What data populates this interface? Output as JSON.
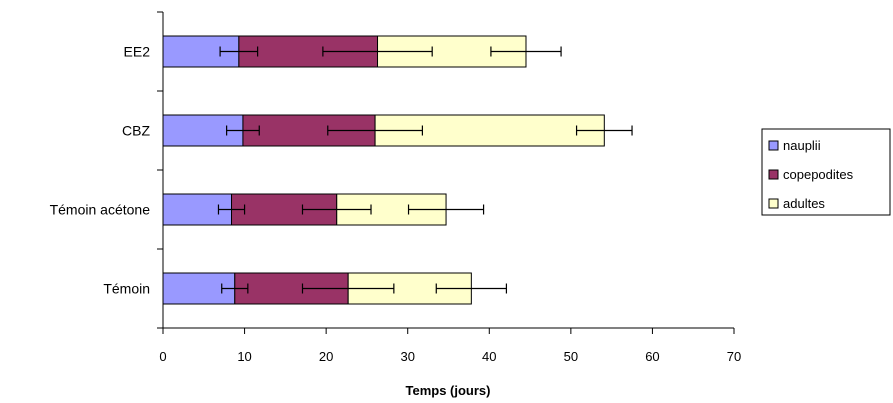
{
  "chart_data": {
    "type": "bar",
    "orientation": "horizontal",
    "stacked": true,
    "title": "",
    "xlabel": "Temps (jours)",
    "ylabel": "",
    "xlim": [
      0,
      70
    ],
    "x_ticks": [
      0,
      10,
      20,
      30,
      40,
      50,
      60,
      70
    ],
    "grid": false,
    "legend_position": "right",
    "categories": [
      "Témoin",
      "Témoin acétone",
      "CBZ",
      "EE2"
    ],
    "series": [
      {
        "name": "nauplii",
        "color": "#9999ff",
        "values": [
          8.8,
          8.4,
          9.8,
          9.3
        ],
        "errors": [
          1.6,
          1.6,
          2.0,
          2.3
        ]
      },
      {
        "name": "copepodites",
        "color": "#993366",
        "values": [
          13.9,
          12.9,
          16.2,
          17.0
        ],
        "errors": [
          5.6,
          4.2,
          5.8,
          6.7
        ]
      },
      {
        "name": "adultes",
        "color": "#ffffcc",
        "values": [
          15.1,
          13.4,
          28.1,
          18.2
        ],
        "errors": [
          4.3,
          4.6,
          3.4,
          4.3
        ]
      }
    ]
  }
}
